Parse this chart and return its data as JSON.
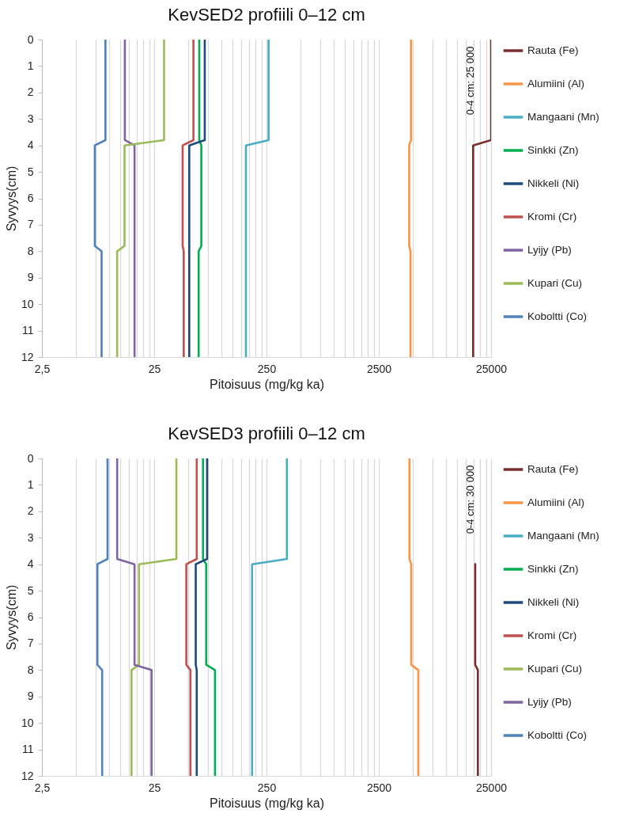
{
  "chart_data": [
    {
      "type": "line",
      "title": "KevSED2 profiili 0–12 cm",
      "xlabel": "Pitoisuus (mg/kg ka)",
      "ylabel": "Syvyys(cm)",
      "log": "x",
      "grid": "x",
      "legend": "right",
      "xlim": [
        2.5,
        25000
      ],
      "ylim": [
        12,
        0
      ],
      "yticks": [
        0,
        1,
        2,
        3,
        4,
        5,
        6,
        7,
        8,
        9,
        10,
        11,
        12
      ],
      "xticks": [
        {
          "value": 2.5,
          "label": "2,5"
        },
        {
          "value": 5,
          "label": null
        },
        {
          "value": 7.5,
          "label": null
        },
        {
          "value": 10,
          "label": null
        },
        {
          "value": 12.5,
          "label": null
        },
        {
          "value": 15,
          "label": null
        },
        {
          "value": 17.5,
          "label": null
        },
        {
          "value": 20,
          "label": null
        },
        {
          "value": 22.5,
          "label": null
        },
        25,
        {
          "value": 50,
          "label": null
        },
        {
          "value": 75,
          "label": null
        },
        {
          "value": 100,
          "label": null
        },
        {
          "value": 125,
          "label": null
        },
        {
          "value": 150,
          "label": null
        },
        {
          "value": 175,
          "label": null
        },
        {
          "value": 200,
          "label": null
        },
        {
          "value": 225,
          "label": null
        },
        250,
        {
          "value": 500,
          "label": null
        },
        {
          "value": 750,
          "label": null
        },
        {
          "value": 1000,
          "label": null
        },
        {
          "value": 1250,
          "label": null
        },
        {
          "value": 1500,
          "label": null
        },
        {
          "value": 1750,
          "label": null
        },
        {
          "value": 2000,
          "label": null
        },
        {
          "value": 2250,
          "label": null
        },
        2500,
        {
          "value": 5000,
          "label": null
        },
        {
          "value": 7500,
          "label": null
        },
        {
          "value": 10000,
          "label": null
        },
        {
          "value": 12500,
          "label": null
        },
        {
          "value": 15000,
          "label": null
        },
        {
          "value": 17500,
          "label": null
        },
        {
          "value": 20000,
          "label": null
        },
        {
          "value": 22500,
          "label": null
        },
        25000
      ],
      "annotations": [
        "0-4 cm: 25 000"
      ],
      "series": [
        {
          "name": "Rauta (Fe)",
          "color": "#7b2c2c",
          "x": [
            25000,
            25000,
            17300,
            17300,
            17300,
            17300
          ],
          "values": [
            0,
            3.8,
            4,
            7.8,
            8,
            12
          ]
        },
        {
          "name": "Alumiini (Al)",
          "color": "#f79646",
          "x": [
            4840,
            4840,
            4660,
            4660,
            4790,
            4790
          ],
          "values": [
            0,
            3.8,
            4,
            7.8,
            8,
            12
          ]
        },
        {
          "name": "Mangaani (Mn)",
          "color": "#4bacc6",
          "x": [
            261,
            261,
            164,
            164,
            164,
            164
          ],
          "values": [
            0,
            3.8,
            4,
            7.8,
            8,
            12
          ]
        },
        {
          "name": "Sinkki (Zn)",
          "color": "#00b050",
          "x": [
            63,
            63,
            65.7,
            65.7,
            62.2,
            62.2
          ],
          "values": [
            0,
            3.8,
            4,
            7.8,
            8,
            12
          ]
        },
        {
          "name": "Nikkeli (Ni)",
          "color": "#1f497d",
          "x": [
            70.5,
            70.5,
            51.3,
            51.3,
            51.3,
            51.3
          ],
          "values": [
            0,
            3.8,
            4,
            7.8,
            8,
            12
          ]
        },
        {
          "name": "Kromi (Cr)",
          "color": "#c0504d",
          "x": [
            55.9,
            55.9,
            44.8,
            44.8,
            45.8,
            45.8
          ],
          "values": [
            0,
            3.8,
            4,
            7.8,
            8,
            12
          ]
        },
        {
          "name": "Lyijy (Pb)",
          "color": "#8064a2",
          "x": [
            13.7,
            13.7,
            16.7,
            16.7,
            16.7,
            16.7
          ],
          "values": [
            0,
            3.8,
            4,
            7.8,
            8,
            12
          ]
        },
        {
          "name": "Kupari (Cu)",
          "color": "#9bbb59",
          "x": [
            30.6,
            30.6,
            13.6,
            13.6,
            11.7,
            11.7
          ],
          "values": [
            0,
            3.8,
            4,
            7.8,
            8,
            12
          ]
        },
        {
          "name": "Koboltti (Co)",
          "color": "#4f81bd",
          "x": [
            9.2,
            9.2,
            7.4,
            7.4,
            8.5,
            8.5
          ],
          "values": [
            0,
            3.8,
            4,
            7.8,
            8,
            12
          ]
        }
      ]
    },
    {
      "type": "line",
      "title": "KevSED3 profiili 0–12 cm",
      "xlabel": "Pitoisuus (mg/kg ka)",
      "ylabel": "Syvyys(cm)",
      "log": "x",
      "grid": "x",
      "legend": "right",
      "xlim": [
        2.5,
        25000
      ],
      "ylim": [
        12,
        0
      ],
      "yticks": [
        0,
        1,
        2,
        3,
        4,
        5,
        6,
        7,
        8,
        9,
        10,
        11,
        12
      ],
      "xticks": [
        {
          "value": 2.5,
          "label": "2,5"
        },
        {
          "value": 5,
          "label": null
        },
        {
          "value": 7.5,
          "label": null
        },
        {
          "value": 10,
          "label": null
        },
        {
          "value": 12.5,
          "label": null
        },
        {
          "value": 15,
          "label": null
        },
        {
          "value": 17.5,
          "label": null
        },
        {
          "value": 20,
          "label": null
        },
        {
          "value": 22.5,
          "label": null
        },
        25,
        {
          "value": 50,
          "label": null
        },
        {
          "value": 75,
          "label": null
        },
        {
          "value": 100,
          "label": null
        },
        {
          "value": 125,
          "label": null
        },
        {
          "value": 150,
          "label": null
        },
        {
          "value": 175,
          "label": null
        },
        {
          "value": 200,
          "label": null
        },
        {
          "value": 225,
          "label": null
        },
        250,
        {
          "value": 500,
          "label": null
        },
        {
          "value": 750,
          "label": null
        },
        {
          "value": 1000,
          "label": null
        },
        {
          "value": 1250,
          "label": null
        },
        {
          "value": 1500,
          "label": null
        },
        {
          "value": 1750,
          "label": null
        },
        {
          "value": 2000,
          "label": null
        },
        {
          "value": 2250,
          "label": null
        },
        2500,
        {
          "value": 5000,
          "label": null
        },
        {
          "value": 7500,
          "label": null
        },
        {
          "value": 10000,
          "label": null
        },
        {
          "value": 12500,
          "label": null
        },
        {
          "value": 15000,
          "label": null
        },
        {
          "value": 17500,
          "label": null
        },
        {
          "value": 20000,
          "label": null
        },
        {
          "value": 22500,
          "label": null
        },
        25000
      ],
      "annotations": [
        "0-4 cm: 30 000"
      ],
      "series": [
        {
          "name": "Rauta (Fe)",
          "color": "#7b2c2c",
          "x": [
            18060,
            18060,
            19070,
            19070
          ],
          "values": [
            4,
            7.8,
            8,
            12
          ]
        },
        {
          "name": "Alumiini (Al)",
          "color": "#f79646",
          "x": [
            4690,
            4690,
            4860,
            4860,
            5620,
            5620
          ],
          "values": [
            0,
            3.8,
            4,
            7.8,
            8,
            12
          ]
        },
        {
          "name": "Mangaani (Mn)",
          "color": "#4bacc6",
          "x": [
            380,
            380,
            186,
            186,
            186,
            186
          ],
          "values": [
            0,
            3.8,
            4,
            7.8,
            8,
            12
          ]
        },
        {
          "name": "Sinkki (Zn)",
          "color": "#00b050",
          "x": [
            68,
            68,
            72.6,
            72.6,
            87,
            87
          ],
          "values": [
            0,
            3.8,
            4,
            7.8,
            8,
            12
          ]
        },
        {
          "name": "Nikkeli (Ni)",
          "color": "#1f497d",
          "x": [
            74,
            74,
            58.6,
            58.6,
            59.8,
            59.8
          ],
          "values": [
            0,
            3.8,
            4,
            7.8,
            8,
            12
          ]
        },
        {
          "name": "Kromi (Cr)",
          "color": "#c0504d",
          "x": [
            59.8,
            59.8,
            48.3,
            48.3,
            52.6,
            52.6
          ],
          "values": [
            0,
            3.8,
            4,
            7.8,
            8,
            12
          ]
        },
        {
          "name": "Kupari (Cu)",
          "color": "#9bbb59",
          "x": [
            39.4,
            39.4,
            18.3,
            18.3,
            15.7,
            15.7
          ],
          "values": [
            0,
            3.8,
            4,
            7.8,
            8,
            12
          ]
        },
        {
          "name": "Lyijy (Pb)",
          "color": "#8064a2",
          "x": [
            11.7,
            11.7,
            16.7,
            16.7,
            23.7,
            23.7
          ],
          "values": [
            0,
            3.8,
            4,
            7.8,
            8,
            12
          ]
        },
        {
          "name": "Koboltti (Co)",
          "color": "#4f81bd",
          "x": [
            9.6,
            9.6,
            7.8,
            7.8,
            8.6,
            8.6
          ],
          "values": [
            0,
            3.8,
            4,
            7.8,
            8,
            12
          ]
        }
      ]
    }
  ]
}
